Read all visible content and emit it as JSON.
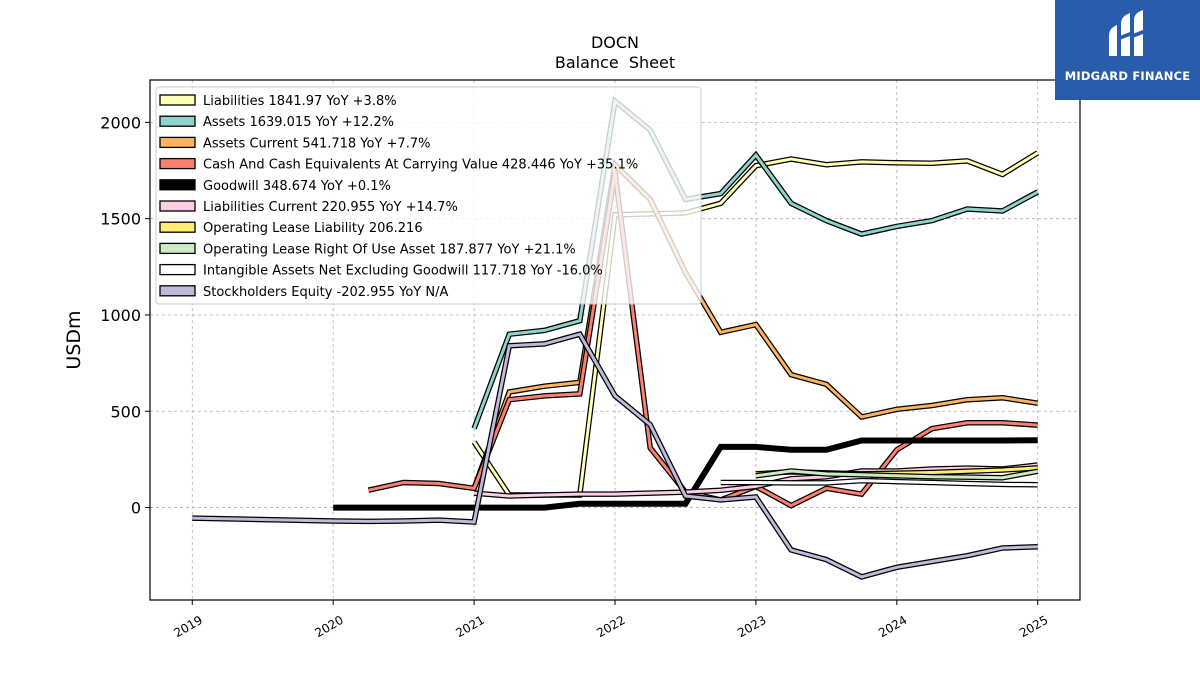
{
  "chart_data": {
    "type": "line",
    "title": "DOCN",
    "subtitle": "Balance  Sheet",
    "ylabel": "USDm",
    "xlabel": "",
    "x_ticks": [
      "2019",
      "2020",
      "2021",
      "2022",
      "2023",
      "2024",
      "2025"
    ],
    "y_ticks": [
      "0",
      "500",
      "1000",
      "1500",
      "2000"
    ],
    "xlim": [
      2018.7,
      2025.3
    ],
    "ylim": [
      -480,
      2220
    ],
    "grid": true,
    "legend_position": "top-left",
    "series": [
      {
        "name": "Liabilities",
        "legend_label": "Liabilities  1841.97 YoY +3.8%",
        "color": "#ffffb3",
        "width": 3,
        "points": [
          [
            2021.0,
            340
          ],
          [
            2021.25,
            65
          ],
          [
            2021.5,
            65
          ],
          [
            2021.75,
            65
          ],
          [
            2022.0,
            1520
          ],
          [
            2022.25,
            1525
          ],
          [
            2022.5,
            1530
          ],
          [
            2022.75,
            1580
          ],
          [
            2023.0,
            1775
          ],
          [
            2023.25,
            1810
          ],
          [
            2023.5,
            1780
          ],
          [
            2023.75,
            1795
          ],
          [
            2024.0,
            1790
          ],
          [
            2024.25,
            1788
          ],
          [
            2024.5,
            1800
          ],
          [
            2024.75,
            1730
          ],
          [
            2025.0,
            1842
          ]
        ]
      },
      {
        "name": "Assets",
        "legend_label": "Assets  1639.015 YoY +12.2%",
        "color": "#8dd3c7",
        "width": 3,
        "points": [
          [
            2021.0,
            410
          ],
          [
            2021.25,
            900
          ],
          [
            2021.5,
            920
          ],
          [
            2021.75,
            970
          ],
          [
            2022.0,
            2110
          ],
          [
            2022.25,
            1960
          ],
          [
            2022.5,
            1600
          ],
          [
            2022.75,
            1630
          ],
          [
            2023.0,
            1830
          ],
          [
            2023.25,
            1580
          ],
          [
            2023.5,
            1490
          ],
          [
            2023.75,
            1420
          ],
          [
            2024.0,
            1460
          ],
          [
            2024.25,
            1490
          ],
          [
            2024.5,
            1550
          ],
          [
            2024.75,
            1540
          ],
          [
            2025.0,
            1639
          ]
        ]
      },
      {
        "name": "Assets Current",
        "legend_label": "Assets Current  541.718 YoY +7.7%",
        "color": "#fdb462",
        "width": 3,
        "points": [
          [
            2021.0,
            100
          ],
          [
            2021.25,
            600
          ],
          [
            2021.5,
            630
          ],
          [
            2021.75,
            650
          ],
          [
            2022.0,
            1780
          ],
          [
            2022.25,
            1600
          ],
          [
            2022.5,
            1220
          ],
          [
            2022.75,
            910
          ],
          [
            2023.0,
            950
          ],
          [
            2023.25,
            690
          ],
          [
            2023.5,
            640
          ],
          [
            2023.75,
            470
          ],
          [
            2024.0,
            510
          ],
          [
            2024.25,
            530
          ],
          [
            2024.5,
            560
          ],
          [
            2024.75,
            570
          ],
          [
            2025.0,
            542
          ]
        ]
      },
      {
        "name": "Cash And Cash Equivalents At Carrying Value",
        "legend_label": "Cash And Cash Equivalents At Carrying Value  428.446 YoY +35.1%",
        "color": "#fb8072",
        "width": 3,
        "points": [
          [
            2020.25,
            90
          ],
          [
            2020.5,
            130
          ],
          [
            2020.75,
            125
          ],
          [
            2021.0,
            100
          ],
          [
            2021.25,
            560
          ],
          [
            2021.5,
            580
          ],
          [
            2021.75,
            590
          ],
          [
            2022.0,
            1740
          ],
          [
            2022.25,
            310
          ],
          [
            2022.5,
            80
          ],
          [
            2022.75,
            40
          ],
          [
            2023.0,
            110
          ],
          [
            2023.25,
            10
          ],
          [
            2023.5,
            100
          ],
          [
            2023.75,
            70
          ],
          [
            2024.0,
            300
          ],
          [
            2024.25,
            410
          ],
          [
            2024.5,
            440
          ],
          [
            2024.75,
            440
          ],
          [
            2025.0,
            428
          ]
        ]
      },
      {
        "name": "Goodwill",
        "legend_label": "Goodwill  348.674 YoY +0.1%",
        "color": "#000000",
        "width": 6,
        "points": [
          [
            2020.0,
            0
          ],
          [
            2021.5,
            0
          ],
          [
            2021.75,
            20
          ],
          [
            2022.0,
            20
          ],
          [
            2022.25,
            20
          ],
          [
            2022.5,
            20
          ],
          [
            2022.75,
            315
          ],
          [
            2023.0,
            315
          ],
          [
            2023.25,
            300
          ],
          [
            2023.5,
            300
          ],
          [
            2023.75,
            348
          ],
          [
            2024.0,
            348
          ],
          [
            2024.25,
            348
          ],
          [
            2024.5,
            348
          ],
          [
            2024.75,
            348
          ],
          [
            2025.0,
            349
          ]
        ]
      },
      {
        "name": "Liabilities Current",
        "legend_label": "Liabilities Current  220.955 YoY +14.7%",
        "color": "#fccde5",
        "width": 3,
        "points": [
          [
            2021.0,
            75
          ],
          [
            2021.25,
            60
          ],
          [
            2021.5,
            65
          ],
          [
            2021.75,
            70
          ],
          [
            2022.0,
            70
          ],
          [
            2022.25,
            75
          ],
          [
            2022.5,
            80
          ],
          [
            2022.75,
            90
          ],
          [
            2023.0,
            110
          ],
          [
            2023.25,
            150
          ],
          [
            2023.5,
            160
          ],
          [
            2023.75,
            190
          ],
          [
            2024.0,
            190
          ],
          [
            2024.25,
            200
          ],
          [
            2024.5,
            205
          ],
          [
            2024.75,
            200
          ],
          [
            2025.0,
            221
          ]
        ]
      },
      {
        "name": "Operating Lease Liability",
        "legend_label": "Operating Lease Liability  206.216",
        "color": "#ffed6f",
        "width": 3,
        "points": [
          [
            2023.0,
            175
          ],
          [
            2023.25,
            185
          ],
          [
            2023.5,
            180
          ],
          [
            2023.75,
            175
          ],
          [
            2024.0,
            178
          ],
          [
            2024.25,
            182
          ],
          [
            2024.5,
            188
          ],
          [
            2024.75,
            195
          ],
          [
            2025.0,
            206
          ]
        ]
      },
      {
        "name": "Operating Lease Right Of Use Asset",
        "legend_label": "Operating Lease Right Of Use Asset  187.877 YoY +21.1%",
        "color": "#ccebc5",
        "width": 3,
        "points": [
          [
            2023.0,
            165
          ],
          [
            2023.25,
            190
          ],
          [
            2023.5,
            175
          ],
          [
            2023.75,
            170
          ],
          [
            2024.0,
            165
          ],
          [
            2024.25,
            160
          ],
          [
            2024.5,
            158
          ],
          [
            2024.75,
            155
          ],
          [
            2025.0,
            188
          ]
        ]
      },
      {
        "name": "Intangible Assets Net Excluding Goodwill",
        "legend_label": "Intangible Assets Net Excluding Goodwill  117.718 YoY -16.0%",
        "color": "#ffffff",
        "width": 3,
        "points": [
          [
            2022.75,
            130
          ],
          [
            2023.0,
            130
          ],
          [
            2023.25,
            128
          ],
          [
            2023.5,
            128
          ],
          [
            2023.75,
            140
          ],
          [
            2024.0,
            135
          ],
          [
            2024.25,
            130
          ],
          [
            2024.5,
            125
          ],
          [
            2024.75,
            120
          ],
          [
            2025.0,
            118
          ]
        ]
      },
      {
        "name": "Stockholders Equity",
        "legend_label": "Stockholders Equity  -202.955 YoY N/A",
        "color": "#bebada",
        "width": 3,
        "points": [
          [
            2019.0,
            -55
          ],
          [
            2020.0,
            -70
          ],
          [
            2020.25,
            -72
          ],
          [
            2020.5,
            -70
          ],
          [
            2020.75,
            -65
          ],
          [
            2021.0,
            -75
          ],
          [
            2021.25,
            840
          ],
          [
            2021.5,
            850
          ],
          [
            2021.75,
            900
          ],
          [
            2022.0,
            580
          ],
          [
            2022.25,
            430
          ],
          [
            2022.5,
            60
          ],
          [
            2022.75,
            40
          ],
          [
            2023.0,
            55
          ],
          [
            2023.25,
            -220
          ],
          [
            2023.5,
            -270
          ],
          [
            2023.75,
            -360
          ],
          [
            2024.0,
            -310
          ],
          [
            2024.25,
            -280
          ],
          [
            2024.5,
            -250
          ],
          [
            2024.75,
            -210
          ],
          [
            2025.0,
            -203
          ]
        ]
      }
    ]
  },
  "brand": {
    "name": "MIDGARD FINANCE",
    "icon": "midgard-logo-icon",
    "color": "#2a5cac"
  }
}
